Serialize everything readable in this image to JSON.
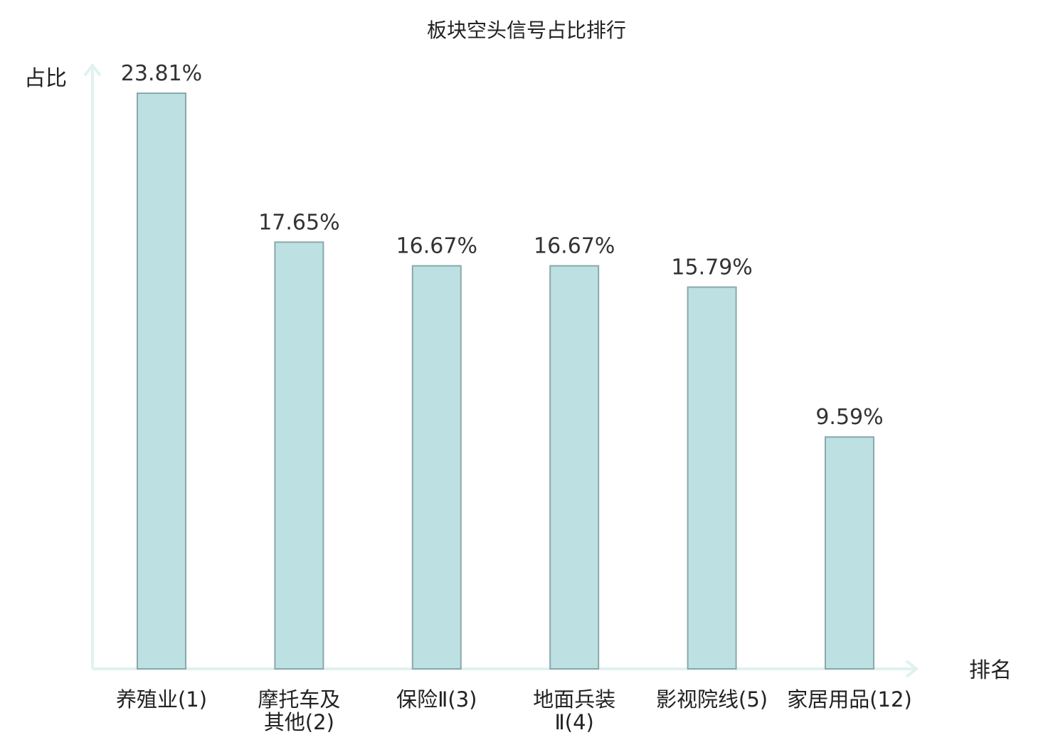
{
  "chart_data": {
    "type": "bar",
    "title": "板块空头信号占比排行",
    "xlabel": "排名",
    "ylabel": "占比",
    "categories": [
      [
        "养殖业(1)"
      ],
      [
        "摩托车及",
        "其他(2)"
      ],
      [
        "保险Ⅱ(3)"
      ],
      [
        "地面兵装",
        "Ⅱ(4)"
      ],
      [
        "影视院线(5)"
      ],
      [
        "家居用品(12)"
      ]
    ],
    "values": [
      23.81,
      17.65,
      16.67,
      16.67,
      15.79,
      9.59
    ],
    "value_labels": [
      "23.81%",
      "17.65%",
      "16.67%",
      "16.67%",
      "15.79%",
      "9.59%"
    ],
    "ylim": [
      0,
      23.81
    ],
    "grid": false,
    "bar_color": "#bde0e3",
    "bar_border_color": "#8aa8aa",
    "axis_color": "#e0f2f0",
    "highlight_category_index": 5,
    "highlight_color": "#e02020"
  }
}
